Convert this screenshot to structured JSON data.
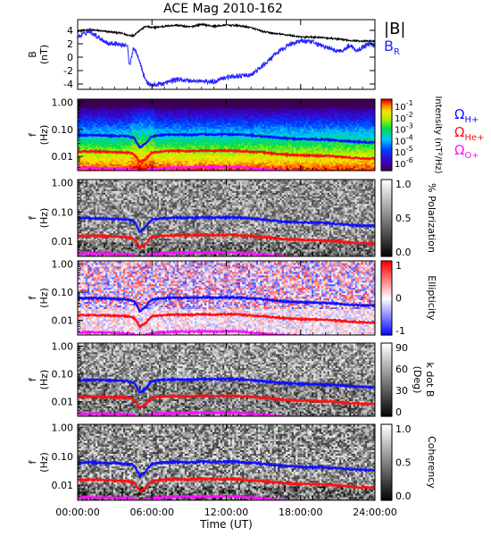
{
  "chart_data": {
    "title": "ACE Mag 2010-162",
    "type": "multi-panel",
    "xlabel": "Time (UT)",
    "x_ticks": [
      "00:00:00",
      "06:00:00",
      "12:00:00",
      "18:00:00",
      "24:00:00"
    ],
    "x_range_hours": [
      0,
      24
    ],
    "colors": {
      "B_total": "#000000",
      "B_R": "#2323ff",
      "omega_h": "#1010ff",
      "omega_he": "#ff1010",
      "omega_o": "#ff10ff"
    },
    "panels": [
      {
        "type": "line",
        "ylabel_main": "B",
        "ylabel_unit": "(nT)",
        "y_ticks": [
          "4",
          "2",
          "0",
          "-2",
          "-4"
        ],
        "y_tick_values": [
          4,
          2,
          0,
          -2,
          -4
        ],
        "ylim": [
          -4.8,
          5.6
        ],
        "legend": {
          "total": "|B|",
          "radial_main": "B",
          "radial_sub": "R"
        },
        "series": [
          {
            "name": "|B|",
            "x": [
              0,
              0.5,
              1,
              1.5,
              2,
              2.5,
              3,
              3.5,
              4,
              4.5,
              5,
              5.5,
              6,
              7,
              8,
              9,
              10,
              11,
              12,
              13,
              14,
              15,
              16,
              17,
              18,
              19,
              20,
              21,
              22,
              23,
              24
            ],
            "values": [
              3.9,
              4.0,
              4.1,
              4.0,
              3.9,
              3.8,
              3.7,
              3.6,
              3.3,
              3.2,
              4.0,
              4.6,
              4.4,
              4.6,
              4.8,
              4.5,
              4.9,
              4.6,
              4.8,
              4.7,
              4.4,
              3.8,
              3.5,
              3.3,
              3.0,
              3.0,
              2.9,
              2.7,
              2.5,
              2.4,
              2.4
            ]
          },
          {
            "name": "B_R",
            "x": [
              0,
              0.5,
              1,
              1.5,
              2,
              2.5,
              3,
              3.5,
              4,
              4.2,
              4.5,
              4.8,
              5.0,
              5.3,
              5.6,
              6,
              7,
              8,
              9,
              10,
              11,
              11.5,
              12,
              13,
              14,
              15,
              16,
              17,
              18,
              19,
              20,
              20.5,
              21,
              21.5,
              22,
              22.5,
              23,
              23.5,
              24
            ],
            "values": [
              3.0,
              3.5,
              3.9,
              3.2,
              2.6,
              2.0,
              2.1,
              1.8,
              1.9,
              -1.5,
              1.5,
              0.5,
              -0.5,
              -2.5,
              -3.8,
              -4.2,
              -3.9,
              -3.3,
              -3.5,
              -3.6,
              -3.7,
              -3.2,
              -3.0,
              -2.8,
              -2.7,
              -1.2,
              0.5,
              1.8,
              2.5,
              2.2,
              1.5,
              1.2,
              0.9,
              1.1,
              1.8,
              1.0,
              1.5,
              2.0,
              1.8
            ]
          }
        ]
      },
      {
        "type": "heatmap",
        "ylabel_main": "f",
        "ylabel_unit": "(Hz)",
        "y_ticks": [
          "1.00",
          "0.10",
          "0.01"
        ],
        "colorbar": {
          "type": "rainbow-log",
          "ticks_base": [
            "10",
            "10",
            "10",
            "10",
            "10",
            "10"
          ],
          "ticks_exp": [
            "-1",
            "-2",
            "-3",
            "-4",
            "-5",
            "-6"
          ],
          "label": "Intensity (nT²/Hz)"
        },
        "cyclotron_labels": [
          {
            "symbol": "Ω",
            "sub": "H+",
            "color": "#1010ff"
          },
          {
            "symbol": "Ω",
            "sub": "He+",
            "color": "#ff1010"
          },
          {
            "symbol": "Ω",
            "sub": "O+",
            "color": "#ff10ff"
          }
        ]
      },
      {
        "type": "heatmap",
        "ylabel_main": "f",
        "ylabel_unit": "(Hz)",
        "y_ticks": [
          "1.00",
          "0.10",
          "0.01"
        ],
        "colorbar": {
          "type": "gray",
          "ticks": [
            "1.0",
            "0.5",
            "0.0"
          ],
          "label": "% Polarization"
        }
      },
      {
        "type": "heatmap",
        "ylabel_main": "f",
        "ylabel_unit": "(Hz)",
        "y_ticks": [
          "1.00",
          "0.10",
          "0.01"
        ],
        "colorbar": {
          "type": "bwr",
          "ticks": [
            "1",
            "0",
            "-1"
          ],
          "label": "Ellipticity"
        }
      },
      {
        "type": "heatmap",
        "ylabel_main": "f",
        "ylabel_unit": "(Hz)",
        "y_ticks": [
          "1.00",
          "0.10",
          "0.01"
        ],
        "colorbar": {
          "type": "gray",
          "ticks": [
            "90",
            "60",
            "30",
            "0"
          ],
          "label_line1": "k dot B",
          "label_line2": "(Deg)"
        }
      },
      {
        "type": "heatmap",
        "ylabel_main": "f",
        "ylabel_unit": "(Hz)",
        "y_ticks": [
          "1.00",
          "0.10",
          "0.01"
        ],
        "colorbar": {
          "type": "gray",
          "ticks": [
            "1.0",
            "0.5",
            "0.0"
          ],
          "label": "Coherency"
        }
      }
    ],
    "cyclotron_frequencies": {
      "x": [
        0,
        1,
        2,
        3,
        4,
        4.5,
        5,
        5.5,
        6,
        7,
        8,
        9,
        10,
        11,
        12,
        13,
        14,
        15,
        16,
        17,
        18,
        19,
        20,
        21,
        22,
        23,
        24
      ],
      "H_plus_Hz": [
        0.06,
        0.062,
        0.06,
        0.058,
        0.055,
        0.05,
        0.02,
        0.03,
        0.055,
        0.062,
        0.064,
        0.062,
        0.066,
        0.064,
        0.066,
        0.064,
        0.06,
        0.055,
        0.05,
        0.046,
        0.044,
        0.043,
        0.042,
        0.039,
        0.036,
        0.034,
        0.033
      ],
      "He_plus_Hz": [
        0.015,
        0.0155,
        0.015,
        0.0145,
        0.014,
        0.0125,
        0.006,
        0.008,
        0.014,
        0.0155,
        0.016,
        0.0155,
        0.0165,
        0.016,
        0.0165,
        0.016,
        0.015,
        0.014,
        0.0125,
        0.0115,
        0.011,
        0.0108,
        0.0105,
        0.0098,
        0.009,
        0.0085,
        0.0083
      ],
      "O_plus_Hz": [
        0.0037,
        0.0038,
        0.0037,
        0.0036,
        0.0035,
        0.0032,
        0.0028,
        0.003,
        0.0035,
        0.0038,
        0.004,
        0.0039,
        0.0041,
        0.004,
        0.0041,
        0.004,
        0.0037,
        0.0034,
        0.0031,
        0.0029,
        0.0028,
        0.0027,
        0.0026,
        0.0025,
        0.0024,
        0.0023,
        0.0023
      ]
    },
    "freq_range_hz": [
      0.003,
      1.3
    ]
  }
}
